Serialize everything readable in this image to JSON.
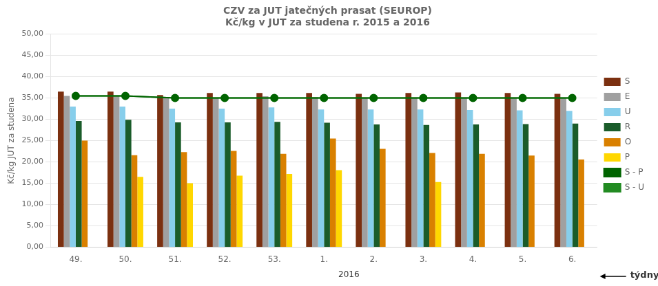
{
  "chart_data": {
    "type": "bar",
    "title": "CZV za JUT jatečných prasat (SEUROP)",
    "subtitle": "Kč/kg v JUT za studena r. 2015 a 2016",
    "ylabel": "Kč/kg JUT za studena",
    "annotations": [
      "2016",
      "týdny"
    ],
    "categories": [
      "49.",
      "50.",
      "51.",
      "52.",
      "53.",
      "1.",
      "2.",
      "3.",
      "4.",
      "5.",
      "6."
    ],
    "series": [
      {
        "name": "S",
        "type": "bar",
        "color": "#7B3010",
        "values": [
          36.5,
          36.5,
          35.7,
          36.2,
          36.2,
          36.2,
          36.0,
          36.2,
          36.3,
          36.2,
          36.0
        ]
      },
      {
        "name": "E",
        "type": "bar",
        "color": "#A0A0A0",
        "values": [
          35.5,
          35.5,
          35.0,
          35.0,
          35.4,
          35.2,
          35.0,
          35.0,
          35.0,
          35.0,
          35.0
        ]
      },
      {
        "name": "U",
        "type": "bar",
        "color": "#87CEEB",
        "values": [
          33.0,
          33.0,
          32.5,
          32.5,
          32.8,
          32.3,
          32.3,
          32.3,
          32.2,
          32.1,
          32.0
        ]
      },
      {
        "name": "R",
        "type": "bar",
        "color": "#1A5C2A",
        "values": [
          29.6,
          29.9,
          29.3,
          29.3,
          29.4,
          29.2,
          28.8,
          28.7,
          28.8,
          28.9,
          29.0
        ]
      },
      {
        "name": "O",
        "type": "bar",
        "color": "#D98000",
        "values": [
          25.0,
          21.6,
          22.3,
          22.6,
          21.9,
          25.5,
          23.1,
          22.1,
          21.9,
          21.5,
          20.6
        ]
      },
      {
        "name": "P",
        "type": "bar",
        "color": "#FFD700",
        "values": [
          0.0,
          16.5,
          15.0,
          16.8,
          17.2,
          18.1,
          0.0,
          15.3,
          0.0,
          0.0,
          0.0
        ]
      },
      {
        "name": "S - P",
        "type": "line",
        "color": "#006400",
        "marker": "circle",
        "values": [
          35.5,
          35.5,
          35.0,
          35.0,
          35.0,
          35.0,
          35.0,
          35.0,
          35.0,
          35.0,
          35.0
        ]
      },
      {
        "name": "S - U",
        "type": "line",
        "color": "#228B22",
        "marker": "diamond",
        "values": [
          35.5,
          35.5,
          35.0,
          35.0,
          35.0,
          35.0,
          35.0,
          35.0,
          35.0,
          35.0,
          35.0
        ]
      }
    ],
    "ylim": [
      0,
      50
    ],
    "yticks": [
      {
        "value": 0,
        "label": "0,00"
      },
      {
        "value": 5,
        "label": "5,00"
      },
      {
        "value": 10,
        "label": "10,00"
      },
      {
        "value": 15,
        "label": "15,00"
      },
      {
        "value": 20,
        "label": "20,00"
      },
      {
        "value": 25,
        "label": "25,00"
      },
      {
        "value": 30,
        "label": "30,00"
      },
      {
        "value": 35,
        "label": "35,00"
      },
      {
        "value": 40,
        "label": "40,00"
      },
      {
        "value": 45,
        "label": "45,00"
      },
      {
        "value": 50,
        "label": "50,00"
      }
    ],
    "grid": true,
    "legend": "right"
  }
}
